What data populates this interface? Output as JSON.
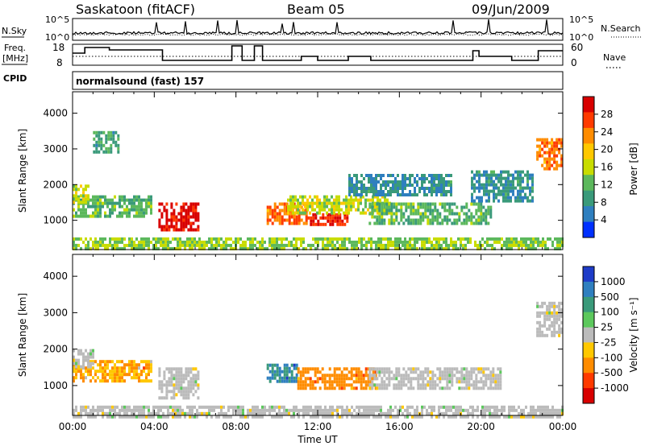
{
  "header": {
    "station": "Saskatoon (fitACF)",
    "beam": "Beam 05",
    "date": "09/Jun/2009"
  },
  "top_panels": {
    "nsky_label": "N.Sky",
    "nsearch_label": "N.Search",
    "freq_label_1": "Freq.",
    "freq_label_2": "[MHz]",
    "nave_label": "Nave",
    "cpid_label": "CPID",
    "noise_ticks": [
      "10^5",
      "10^0"
    ],
    "noise_ticks_right": [
      "10^5",
      "10^0"
    ],
    "freq_ticks": [
      "18",
      "8"
    ],
    "nave_ticks": [
      "60",
      "0"
    ],
    "cpid_text": "normalsound (fast) 157"
  },
  "chart_data": [
    {
      "type": "heatmap",
      "name": "power",
      "ylabel": "Slant Range [km]",
      "ylim": [
        180,
        4600
      ],
      "yticks": [
        "1000",
        "2000",
        "3000",
        "4000"
      ],
      "ytick_values": [
        1000,
        2000,
        3000,
        4000
      ],
      "colorbar_label": "Power [dB]",
      "colorbar_ticks": [
        "28",
        "24",
        "20",
        "16",
        "12",
        "8",
        "4"
      ],
      "colorbar_colors": [
        "#d80000",
        "#ff3a00",
        "#ff8c00",
        "#ffc800",
        "#c8dc00",
        "#5cb85c",
        "#3a9a7a",
        "#2f7fbf",
        "#0030ff"
      ],
      "blobs": [
        {
          "t0": 0.0,
          "t1": 3.8,
          "r0": 1100,
          "r1": 1700,
          "v": 10
        },
        {
          "t0": 4.2,
          "t1": 6.2,
          "r0": 700,
          "r1": 1500,
          "v": 28
        },
        {
          "t0": 1.0,
          "t1": 2.2,
          "r0": 2900,
          "r1": 3500,
          "v": 8
        },
        {
          "t0": 0.0,
          "t1": 0.8,
          "r0": 1500,
          "r1": 2000,
          "v": 14
        },
        {
          "t0": 9.5,
          "t1": 11.5,
          "r0": 900,
          "r1": 1500,
          "v": 22
        },
        {
          "t0": 11.5,
          "t1": 13.5,
          "r0": 900,
          "r1": 1200,
          "v": 26
        },
        {
          "t0": 10.5,
          "t1": 15.5,
          "r0": 1200,
          "r1": 1700,
          "v": 14
        },
        {
          "t0": 14.5,
          "t1": 20.5,
          "r0": 900,
          "r1": 1500,
          "v": 10
        },
        {
          "t0": 22.7,
          "t1": 23.9,
          "r0": 2400,
          "r1": 3300,
          "v": 22
        },
        {
          "t0": 0.0,
          "t1": 24.0,
          "r0": 180,
          "r1": 520,
          "v": 12
        },
        {
          "t0": 13.5,
          "t1": 18.5,
          "r0": 1700,
          "r1": 2300,
          "v": 6
        },
        {
          "t0": 19.5,
          "t1": 22.5,
          "r0": 1500,
          "r1": 2400,
          "v": 6
        }
      ]
    },
    {
      "type": "heatmap",
      "name": "velocity",
      "ylabel": "Slant Range [km]",
      "ylim": [
        180,
        4600
      ],
      "yticks": [
        "1000",
        "2000",
        "3000",
        "4000"
      ],
      "ytick_values": [
        1000,
        2000,
        3000,
        4000
      ],
      "xlabel": "Time UT",
      "xticks": [
        "00:00",
        "04:00",
        "08:00",
        "12:00",
        "16:00",
        "20:00",
        "00:00"
      ],
      "xtick_values": [
        0,
        4,
        8,
        12,
        16,
        20,
        24
      ],
      "xlim": [
        0,
        24
      ],
      "colorbar_label": "Velocity [m s⁻¹]",
      "colorbar_ticks": [
        "1000",
        "500",
        "100",
        "25",
        "-25",
        "-100",
        "-500",
        "-1000"
      ],
      "colorbar_colors": [
        "#1e3cc8",
        "#2f7fbf",
        "#3a9a7a",
        "#5cc85c",
        "#bbbbbb",
        "#ffc800",
        "#ff8c00",
        "#ff3a00",
        "#d80000"
      ],
      "blobs": [
        {
          "t0": 0.0,
          "t1": 3.8,
          "r0": 1100,
          "r1": 1700,
          "v": -100
        },
        {
          "t0": 0.0,
          "t1": 1.0,
          "r0": 1500,
          "r1": 2000,
          "v": 0
        },
        {
          "t0": 4.2,
          "t1": 6.2,
          "r0": 700,
          "r1": 1500,
          "v": 0
        },
        {
          "t0": 9.5,
          "t1": 11.0,
          "r0": 1100,
          "r1": 1600,
          "v": 100
        },
        {
          "t0": 11.0,
          "t1": 14.8,
          "r0": 900,
          "r1": 1500,
          "v": -300
        },
        {
          "t0": 14.5,
          "t1": 21.0,
          "r0": 900,
          "r1": 1500,
          "v": 0
        },
        {
          "t0": 22.7,
          "t1": 23.9,
          "r0": 2400,
          "r1": 3300,
          "v": 0
        },
        {
          "t0": 0.0,
          "t1": 24.0,
          "r0": 180,
          "r1": 450,
          "v": 0
        }
      ]
    }
  ]
}
